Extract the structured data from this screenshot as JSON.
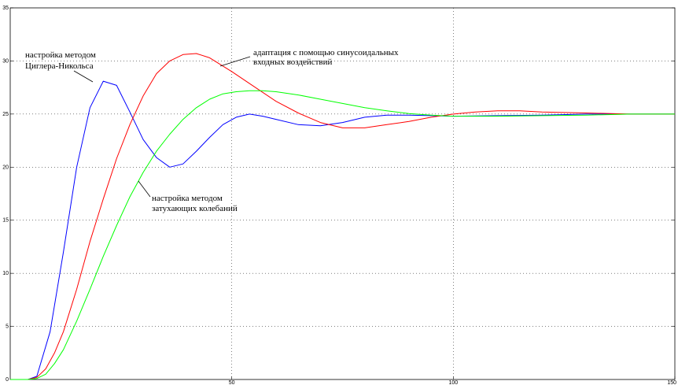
{
  "chart_data": {
    "type": "line",
    "title": "",
    "xlabel": "",
    "ylabel": "",
    "xlim": [
      0,
      150
    ],
    "ylim": [
      0,
      35
    ],
    "grid": true,
    "xticks": [
      "50",
      "100",
      "150"
    ],
    "yticks": [
      "0",
      "5",
      "10",
      "15",
      "20",
      "25",
      "30",
      "35"
    ],
    "series": [
      {
        "color": "#0000ff",
        "x": [
          0,
          4,
          6,
          9,
          12,
          15,
          18,
          21,
          24,
          27,
          30,
          33,
          36,
          39,
          42,
          45,
          48,
          51,
          54,
          57,
          60,
          65,
          70,
          75,
          80,
          85,
          90,
          95,
          100,
          110,
          120,
          130,
          140,
          150
        ],
        "y": [
          0,
          0,
          0.3,
          4.5,
          12,
          20,
          25.6,
          28.1,
          27.7,
          25.2,
          22.6,
          20.9,
          20,
          20.3,
          21.5,
          22.8,
          24,
          24.7,
          25,
          24.8,
          24.5,
          24,
          23.9,
          24.2,
          24.7,
          24.9,
          24.9,
          24.85,
          24.8,
          24.85,
          24.9,
          25,
          25,
          25
        ]
      },
      {
        "color": "#ff0000",
        "x": [
          0,
          4,
          6,
          8,
          10,
          12,
          15,
          18,
          21,
          24,
          27,
          30,
          33,
          36,
          39,
          42,
          45,
          50,
          55,
          60,
          65,
          70,
          75,
          80,
          85,
          90,
          95,
          100,
          105,
          110,
          115,
          120,
          130,
          140,
          150
        ],
        "y": [
          0,
          0,
          0.2,
          1,
          2.5,
          4.5,
          8.5,
          13,
          17,
          20.8,
          24,
          26.7,
          28.8,
          30,
          30.6,
          30.7,
          30.3,
          29,
          27.6,
          26.2,
          25.1,
          24.2,
          23.7,
          23.7,
          24,
          24.3,
          24.7,
          25,
          25.2,
          25.3,
          25.3,
          25.2,
          25.1,
          25,
          25
        ]
      },
      {
        "color": "#00ff00",
        "x": [
          0,
          4,
          6,
          8,
          10,
          12,
          15,
          18,
          21,
          24,
          27,
          30,
          33,
          36,
          39,
          42,
          45,
          48,
          51,
          54,
          57,
          60,
          65,
          70,
          75,
          80,
          85,
          90,
          95,
          100,
          110,
          120,
          130,
          140,
          150
        ],
        "y": [
          0,
          0,
          0.1,
          0.5,
          1.5,
          2.8,
          5.5,
          8.5,
          11.6,
          14.5,
          17.2,
          19.5,
          21.5,
          23.1,
          24.5,
          25.6,
          26.4,
          26.9,
          27.1,
          27.2,
          27.2,
          27.1,
          26.8,
          26.4,
          26,
          25.6,
          25.3,
          25.05,
          24.9,
          24.8,
          24.8,
          24.85,
          24.9,
          25,
          25
        ]
      }
    ],
    "annotations": [
      {
        "lines": [
          "настройка методом",
          "Циглера-Никольса"
        ],
        "color": "#000000"
      },
      {
        "lines": [
          "адаптация с помощью синусоидальных",
          "входных воздействий"
        ],
        "color": "#000000"
      },
      {
        "lines": [
          "настройка методом",
          "затухающих колебаний"
        ],
        "color": "#000000"
      }
    ]
  }
}
